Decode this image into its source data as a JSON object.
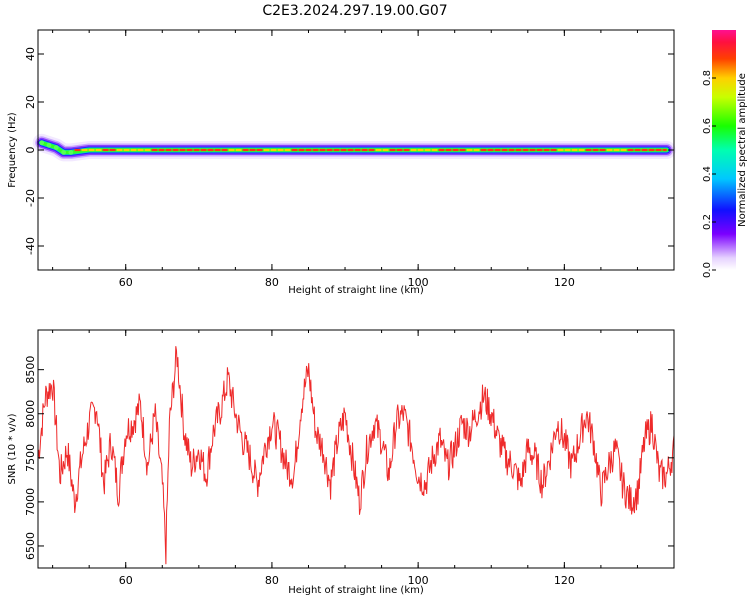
{
  "figure_title": "C2E3.2024.297.19.00.G07",
  "colors": {
    "snr_line": "#ee2a2a",
    "frame": "#000000"
  },
  "chart_data": [
    {
      "type": "heatmap",
      "name": "spectrogram",
      "xlabel": "Height of straight line (km)",
      "ylabel": "Frequency (Hz)",
      "xlim": [
        48,
        135
      ],
      "ylim": [
        -50,
        50
      ],
      "xticks": [
        60,
        80,
        100,
        120
      ],
      "yticks": [
        -40,
        -20,
        0,
        20,
        40
      ],
      "ridge": {
        "description_of_content": "narrow band of spectral energy near 0 Hz across all heights",
        "x": [
          48.5,
          49.5,
          50.5,
          51.5,
          52.5,
          55,
          70,
          90,
          110,
          134
        ],
        "y": [
          3,
          2,
          1,
          -1,
          -1,
          0,
          0,
          0,
          0,
          0
        ]
      },
      "colorbar": {
        "label": "Normalized spectral amplitude",
        "ticks": [
          0.0,
          0.2,
          0.4,
          0.6,
          0.8
        ],
        "range": [
          0,
          1
        ],
        "colormap": "rainbow (white-violet-blue-cyan-green-yellow-red-magenta)"
      }
    },
    {
      "type": "line",
      "name": "snr",
      "xlabel": "Height of straight line (km)",
      "ylabel": "SNR (10 * v/v)",
      "xlim": [
        48,
        135
      ],
      "ylim": [
        6250,
        8950
      ],
      "xticks": [
        60,
        80,
        100,
        120
      ],
      "yticks": [
        6500,
        7000,
        7500,
        8000,
        8500
      ],
      "series": [
        {
          "x": [
            48,
            49,
            50,
            51,
            52,
            53,
            54,
            55,
            56,
            57,
            58,
            59,
            60,
            61,
            62,
            63,
            64,
            65,
            65.5,
            66,
            67,
            68,
            69,
            70,
            71,
            72,
            73,
            74,
            75,
            76,
            77,
            78,
            79,
            80,
            81,
            82,
            83,
            84,
            85,
            86,
            87,
            88,
            89,
            90,
            91,
            92,
            93,
            94,
            95,
            96,
            97,
            98,
            99,
            100,
            101,
            102,
            103,
            104,
            105,
            106,
            107,
            108,
            109,
            110,
            111,
            112,
            113,
            114,
            115,
            116,
            117,
            118,
            119,
            120,
            121,
            122,
            123,
            124,
            125,
            126,
            127,
            128,
            129,
            130,
            131,
            132,
            133,
            134,
            135
          ],
          "values": [
            7500,
            8200,
            8350,
            7300,
            7600,
            7000,
            7500,
            7900,
            8100,
            7200,
            7700,
            7100,
            7800,
            7900,
            8100,
            7400,
            8000,
            7200,
            6450,
            7900,
            8700,
            7800,
            7400,
            7600,
            7300,
            7800,
            8050,
            8400,
            8000,
            7700,
            7500,
            7200,
            7600,
            7900,
            7700,
            7400,
            7300,
            8100,
            8500,
            7800,
            7600,
            7200,
            7700,
            8000,
            7500,
            7000,
            7600,
            7900,
            7700,
            7300,
            7900,
            8000,
            7700,
            7300,
            7200,
            7500,
            7700,
            7400,
            7600,
            7900,
            7800,
            8000,
            8200,
            8000,
            7700,
            7500,
            7400,
            7200,
            7600,
            7500,
            7200,
            7500,
            7900,
            7700,
            7400,
            7700,
            8000,
            7700,
            7100,
            7400,
            7600,
            7200,
            7000,
            7100,
            7700,
            7900,
            7300,
            7300,
            7600
          ]
        }
      ]
    }
  ]
}
